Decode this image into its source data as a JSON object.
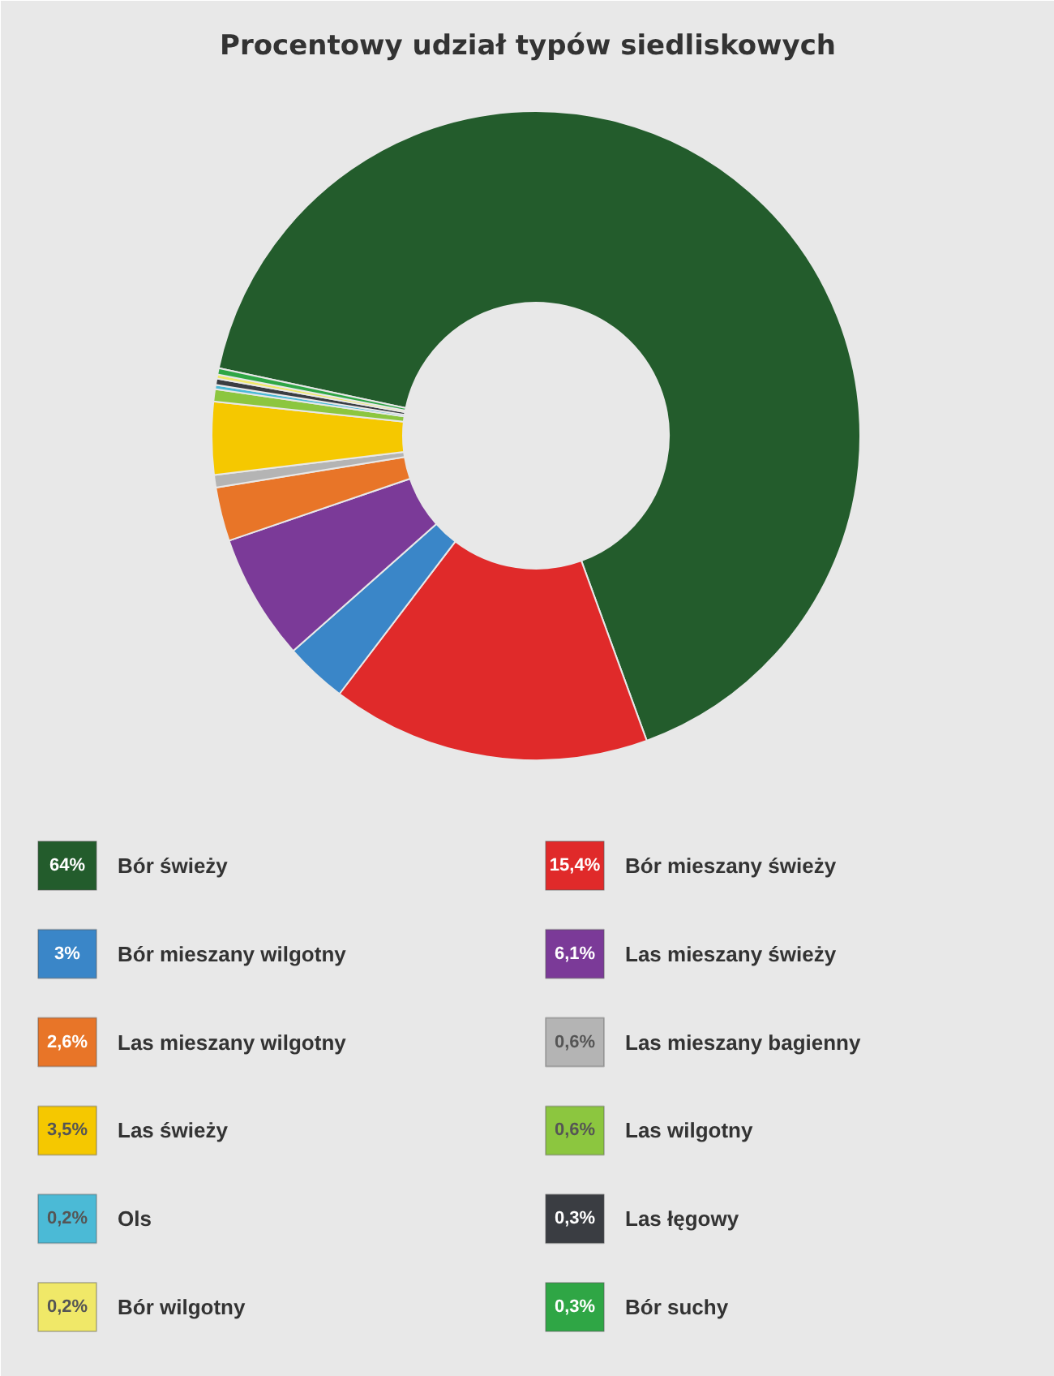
{
  "chart_data": {
    "type": "donut",
    "title": "Procentowy udział typów siedliskowych",
    "categories": [
      "Bór świeży",
      "Bór mieszany świeży",
      "Bór mieszany wilgotny",
      "Las mieszany świeży",
      "Las mieszany wilgotny",
      "Las mieszany bagienny",
      "Las świeży",
      "Las wilgotny",
      "Ols",
      "Las łęgowy",
      "Bór wilgotny",
      "Bór suchy"
    ],
    "values": [
      64,
      15.4,
      3,
      6.1,
      2.6,
      0.6,
      3.5,
      0.6,
      0.2,
      0.3,
      0.2,
      0.3
    ],
    "value_labels": [
      "64%",
      "15,4%",
      "3%",
      "6,1%",
      "2,6%",
      "0,6%",
      "3,5%",
      "0,6%",
      "0,2%",
      "0,3%",
      "0,2%",
      "0,3%"
    ],
    "colors": [
      "#235c2c",
      "#e02a2a",
      "#3a86c8",
      "#7b3a98",
      "#e87528",
      "#b4b4b4",
      "#f5c800",
      "#8cc63f",
      "#4bbad6",
      "#3a3d42",
      "#f0e868",
      "#2fa645"
    ],
    "legend": "bottom"
  }
}
